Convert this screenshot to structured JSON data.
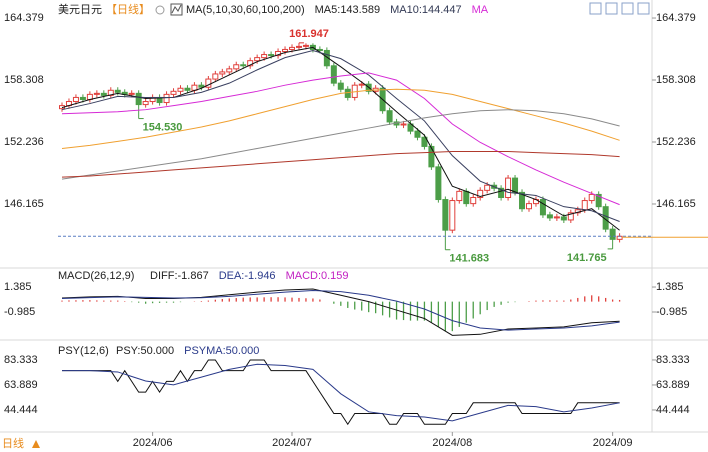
{
  "chart_data": [
    {
      "type": "candlestick",
      "title": "美元日元",
      "period": "【日线】",
      "legend": [
        {
          "label": "MA(5,10,30,60,100,200)",
          "color": "#222222"
        },
        {
          "label": "MA5:143.589",
          "color": "#222222"
        },
        {
          "label": "MA10:144.447",
          "color": "#333a55"
        },
        {
          "label": "MA",
          "color": "#d62ad6"
        }
      ],
      "ylim": [
        140.09,
        165.36
      ],
      "yticks": [
        164.379,
        158.308,
        152.236,
        146.165
      ],
      "up_color": "#e0403c",
      "down_color": "#4c9e48",
      "open": [
        155.5,
        155.8,
        156.2,
        156.6,
        156.4,
        156.9,
        157.0,
        156.8,
        157.3,
        157.1,
        156.9,
        157.0,
        155.9,
        156.2,
        156.6,
        156.1,
        156.9,
        157.2,
        157.5,
        157.3,
        157.8,
        157.6,
        158.4,
        158.9,
        159.1,
        159.4,
        159.8,
        159.7,
        160.2,
        160.5,
        160.8,
        160.7,
        161.1,
        161.3,
        161.5,
        161.6,
        161.7,
        161.3,
        161.2,
        159.7,
        158.0,
        157.4,
        156.6,
        157.8,
        157.9,
        157.2,
        157.5,
        155.3,
        154.2,
        153.9,
        154.0,
        153.3,
        152.7,
        151.8,
        149.8,
        146.6,
        143.6,
        146.5,
        147.4,
        146.2,
        146.8,
        147.5,
        148.0,
        147.7,
        146.8,
        148.7,
        147.3,
        145.7,
        146.2,
        146.6,
        145.1,
        144.8,
        144.9,
        144.6,
        145.3,
        145.6,
        146.5,
        147.1,
        145.9,
        143.7,
        142.7
      ],
      "high": [
        156.1,
        156.5,
        156.9,
        156.9,
        157.2,
        157.3,
        157.3,
        157.6,
        157.6,
        157.4,
        157.3,
        157.3,
        156.5,
        156.9,
        156.9,
        157.2,
        157.5,
        157.8,
        157.8,
        158.1,
        158.1,
        158.7,
        159.2,
        159.4,
        159.7,
        160.1,
        160.1,
        160.5,
        160.8,
        161.1,
        161.1,
        161.4,
        161.6,
        161.8,
        161.947,
        161.9,
        161.9,
        161.6,
        161.5,
        160.0,
        158.3,
        157.7,
        158.1,
        158.2,
        158.2,
        157.8,
        157.8,
        155.6,
        154.5,
        154.3,
        154.3,
        153.6,
        153.0,
        152.1,
        150.1,
        146.9,
        146.8,
        147.7,
        147.7,
        147.1,
        147.8,
        148.3,
        148.3,
        148.0,
        149.0,
        149.0,
        147.6,
        146.5,
        146.9,
        146.9,
        145.4,
        145.2,
        145.2,
        145.6,
        145.9,
        146.8,
        147.4,
        147.4,
        146.2,
        144.0,
        143.3
      ],
      "low": [
        155.2,
        155.5,
        155.9,
        156.1,
        156.1,
        156.6,
        156.5,
        156.5,
        156.8,
        156.6,
        156.6,
        154.53,
        155.6,
        155.9,
        155.8,
        155.8,
        156.6,
        156.9,
        157.0,
        157.0,
        157.3,
        157.3,
        158.1,
        158.6,
        158.8,
        159.1,
        159.4,
        159.4,
        159.9,
        160.2,
        160.4,
        160.4,
        160.8,
        161.0,
        161.2,
        161.3,
        161.0,
        160.9,
        159.4,
        157.7,
        157.1,
        156.3,
        156.3,
        157.5,
        156.9,
        156.9,
        155.0,
        153.9,
        153.6,
        153.6,
        153.0,
        152.4,
        151.5,
        149.5,
        146.3,
        141.683,
        143.3,
        146.2,
        145.9,
        145.9,
        146.5,
        147.2,
        147.4,
        146.5,
        146.5,
        147.0,
        145.4,
        145.4,
        145.9,
        144.8,
        144.5,
        144.5,
        144.3,
        144.3,
        145.0,
        145.3,
        146.2,
        145.6,
        143.4,
        141.765,
        142.4
      ],
      "close": [
        155.8,
        156.2,
        156.6,
        156.4,
        156.9,
        157.0,
        156.8,
        157.3,
        157.1,
        156.9,
        157.0,
        155.9,
        156.2,
        156.6,
        156.1,
        156.9,
        157.2,
        157.5,
        157.3,
        157.8,
        157.6,
        158.4,
        158.9,
        159.1,
        159.4,
        159.8,
        159.7,
        160.2,
        160.5,
        160.8,
        160.7,
        161.1,
        161.3,
        161.5,
        161.6,
        161.7,
        161.3,
        161.2,
        159.7,
        158.0,
        157.4,
        156.6,
        157.8,
        157.9,
        157.2,
        157.5,
        155.3,
        154.2,
        153.9,
        154.0,
        153.3,
        152.7,
        151.8,
        149.8,
        146.6,
        143.6,
        146.5,
        147.4,
        146.2,
        146.8,
        147.5,
        148.0,
        147.7,
        146.8,
        148.7,
        147.3,
        145.7,
        146.2,
        146.6,
        145.1,
        144.8,
        144.9,
        144.6,
        145.3,
        145.6,
        146.5,
        147.1,
        145.9,
        143.7,
        142.7,
        143.0
      ],
      "ma_x": [
        0,
        4,
        8,
        12,
        16,
        20,
        24,
        28,
        32,
        36,
        40,
        44,
        48,
        52,
        56,
        60,
        64,
        68,
        72,
        76,
        80
      ],
      "series": [
        {
          "color": "#111111",
          "values": [
            155.6,
            156.4,
            157.0,
            156.5,
            156.6,
            157.5,
            158.8,
            160.1,
            161.0,
            161.5,
            159.6,
            157.6,
            155.2,
            152.9,
            147.9,
            146.9,
            147.6,
            146.6,
            145.0,
            145.7,
            143.589
          ]
        },
        {
          "color": "#3a4060",
          "values": [
            155.4,
            156.0,
            156.7,
            156.6,
            156.6,
            157.1,
            158.0,
            159.3,
            160.5,
            161.2,
            160.4,
            158.8,
            156.5,
            154.3,
            150.9,
            148.4,
            147.3,
            147.0,
            145.9,
            145.5,
            144.447
          ]
        },
        {
          "color": "#d62ad6",
          "values": [
            155.0,
            155.1,
            155.2,
            155.4,
            155.8,
            156.2,
            156.7,
            157.2,
            157.8,
            158.3,
            158.7,
            159.0,
            158.3,
            156.5,
            154.0,
            152.2,
            150.8,
            149.5,
            148.3,
            147.2,
            146.1
          ]
        },
        {
          "color": "#f0a030",
          "values": [
            151.6,
            151.9,
            152.3,
            152.7,
            153.2,
            153.7,
            154.3,
            155.0,
            155.7,
            156.4,
            157.0,
            157.3,
            157.4,
            157.3,
            156.9,
            156.2,
            155.5,
            154.8,
            154.1,
            153.3,
            152.4
          ]
        },
        {
          "color": "#8a8a8a",
          "values": [
            148.6,
            149.0,
            149.4,
            149.8,
            150.2,
            150.6,
            151.1,
            151.6,
            152.1,
            152.6,
            153.1,
            153.6,
            154.1,
            154.6,
            155.0,
            155.3,
            155.4,
            155.3,
            155.0,
            154.5,
            153.8
          ]
        },
        {
          "color": "#b0392c",
          "values": [
            148.8,
            148.9,
            149.1,
            149.3,
            149.5,
            149.7,
            149.9,
            150.1,
            150.3,
            150.5,
            150.7,
            150.9,
            151.1,
            151.2,
            151.3,
            151.3,
            151.3,
            151.2,
            151.1,
            151.0,
            150.8
          ]
        }
      ],
      "annotations": [
        {
          "index": 34,
          "at": "high",
          "label": "161.947",
          "color": "#d9322e"
        },
        {
          "index": 11,
          "at": "low",
          "label": "154.530",
          "color": "#4a9a3f"
        },
        {
          "index": 55,
          "at": "low",
          "label": "141.683",
          "color": "#4a9a3f"
        },
        {
          "index": 79,
          "at": "low",
          "label": "141.765",
          "color": "#4a9a3f"
        }
      ],
      "price_line_color": "#5a7fc4",
      "price_tag_color": "#f0a030"
    },
    {
      "type": "macd",
      "title": "MACD(26,12,9)",
      "legend": [
        {
          "label": "DIFF:-1.867",
          "color": "#222222"
        },
        {
          "label": "DEA:-1.946",
          "color": "#2a3a8a"
        },
        {
          "label": "MACD:0.159",
          "color": "#c21fc2"
        }
      ],
      "ylim": [
        -3.45,
        3.0
      ],
      "yticks": [
        1.385,
        -0.985
      ],
      "up_color": "#e0403c",
      "down_color": "#4c9e48",
      "histogram": [
        0.1,
        0.12,
        0.13,
        0.14,
        0.14,
        0.12,
        0.1,
        0.1,
        0.1,
        0.05,
        -0.05,
        -0.1,
        -0.2,
        -0.15,
        -0.12,
        -0.1,
        -0.1,
        -0.05,
        0.0,
        0.03,
        0.06,
        0.1,
        0.18,
        0.25,
        0.3,
        0.34,
        0.38,
        0.4,
        0.4,
        0.41,
        0.42,
        0.42,
        0.4,
        0.38,
        0.35,
        0.32,
        0.3,
        0.2,
        0.0,
        -0.2,
        -0.4,
        -0.6,
        -0.75,
        -0.85,
        -1.0,
        -1.1,
        -1.3,
        -1.5,
        -1.7,
        -1.75,
        -1.8,
        -1.8,
        -1.8,
        -2.0,
        -2.4,
        -2.8,
        -2.8,
        -2.4,
        -2.0,
        -1.6,
        -1.2,
        -0.8,
        -0.5,
        -0.3,
        -0.1,
        -0.05,
        0.0,
        0.05,
        0.1,
        0.12,
        0.12,
        0.1,
        0.1,
        0.2,
        0.35,
        0.5,
        0.6,
        0.5,
        0.35,
        0.2,
        0.159
      ],
      "line_x": [
        0,
        4,
        8,
        12,
        16,
        20,
        24,
        28,
        32,
        36,
        40,
        44,
        48,
        52,
        56,
        60,
        64,
        68,
        72,
        76,
        80
      ],
      "series": [
        {
          "color": "#111111",
          "values": [
            0.35,
            0.45,
            0.5,
            0.3,
            0.3,
            0.4,
            0.65,
            0.9,
            1.1,
            1.2,
            0.6,
            0.0,
            -0.8,
            -1.6,
            -3.2,
            -3.1,
            -2.6,
            -2.5,
            -2.4,
            -2.0,
            -1.867
          ]
        },
        {
          "color": "#2a3a8a",
          "values": [
            0.3,
            0.38,
            0.45,
            0.4,
            0.35,
            0.37,
            0.5,
            0.7,
            0.9,
            1.05,
            0.95,
            0.6,
            0.05,
            -0.7,
            -1.8,
            -2.5,
            -2.7,
            -2.6,
            -2.5,
            -2.3,
            -1.946
          ]
        }
      ]
    },
    {
      "type": "line",
      "title": "PSY(12,6)",
      "period_label": "日线",
      "legend": [
        {
          "label": "PSY:50.000",
          "color": "#222222"
        },
        {
          "label": "PSYMA:50.000",
          "color": "#2a3a8a"
        }
      ],
      "ylim": [
        27.3,
        97.3
      ],
      "yticks": [
        83.333,
        63.889,
        44.444
      ],
      "categories": [
        null,
        null,
        null,
        null,
        null,
        null,
        null,
        null,
        null,
        null,
        null,
        null,
        null,
        "2024/06",
        null,
        null,
        null,
        null,
        null,
        null,
        null,
        null,
        null,
        null,
        null,
        null,
        null,
        null,
        null,
        null,
        null,
        null,
        null,
        "2024/07",
        null,
        null,
        null,
        null,
        null,
        null,
        null,
        null,
        null,
        null,
        null,
        null,
        null,
        null,
        null,
        null,
        null,
        null,
        null,
        null,
        null,
        null,
        "2024/08",
        null,
        null,
        null,
        null,
        null,
        null,
        null,
        null,
        null,
        null,
        null,
        null,
        null,
        null,
        null,
        null,
        null,
        null,
        null,
        null,
        null,
        null,
        "2024/09",
        null
      ],
      "color": "#111111",
      "values": [
        75,
        75,
        75,
        75,
        75,
        75,
        75,
        75,
        66.667,
        75,
        66.667,
        58.333,
        58.333,
        66.667,
        58.333,
        66.667,
        66.667,
        75,
        66.667,
        75,
        75,
        83.333,
        83.333,
        75,
        75,
        75,
        75,
        83.333,
        83.333,
        83.333,
        75,
        75,
        75,
        75,
        75,
        75,
        66.667,
        58.333,
        50,
        41.667,
        41.667,
        33.333,
        41.667,
        41.667,
        41.667,
        41.667,
        41.667,
        33.333,
        33.333,
        41.667,
        41.667,
        41.667,
        33.333,
        33.333,
        33.333,
        33.333,
        41.667,
        41.667,
        41.667,
        50,
        50,
        50,
        50,
        50,
        50,
        50,
        41.667,
        41.667,
        41.667,
        41.667,
        41.667,
        41.667,
        41.667,
        41.667,
        50,
        50,
        50,
        50,
        50,
        50,
        50
      ],
      "ma_x": [
        0,
        4,
        8,
        12,
        16,
        20,
        24,
        28,
        32,
        36,
        40,
        44,
        48,
        52,
        56,
        60,
        64,
        68,
        72,
        76,
        80
      ],
      "ma_color": "#2a3a8a",
      "ma_values": [
        75,
        75,
        74,
        67,
        64,
        70,
        76,
        80,
        79,
        76,
        57,
        43,
        40,
        39,
        36,
        42,
        48,
        47,
        43,
        46,
        50
      ]
    }
  ]
}
